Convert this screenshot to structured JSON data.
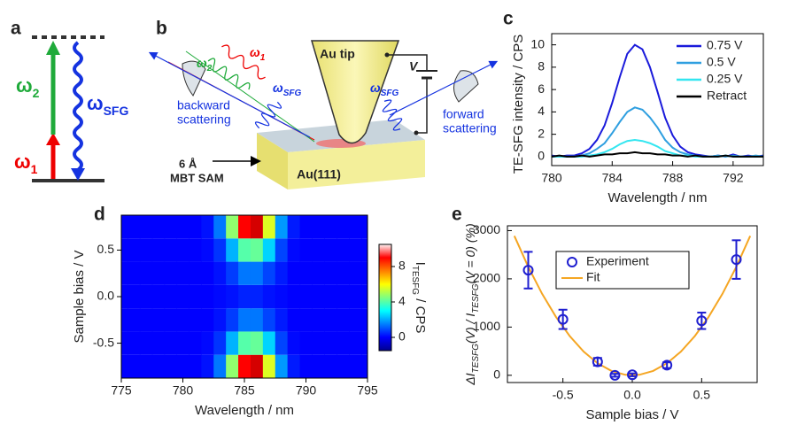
{
  "panel_labels": [
    "a",
    "b",
    "c",
    "d",
    "e"
  ],
  "energy_diagram": {
    "omega_2": [
      "ω",
      "2"
    ],
    "omega_1": [
      "ω",
      "1"
    ],
    "omega_sfg": [
      "ω",
      "SFG"
    ]
  },
  "setup": {
    "tip": "Au tip",
    "substrate": "Au(111)",
    "sam": [
      "6 Å",
      "MBT SAM"
    ],
    "voltage": "V",
    "omega_1": [
      "ω",
      "1"
    ],
    "omega_2": [
      "ω",
      "2"
    ],
    "omega_sfg_back": [
      "ω",
      "SFG"
    ],
    "omega_sfg_fwd": [
      "ω",
      "SFG"
    ],
    "backward": [
      "backward",
      "scattering"
    ],
    "forward": [
      "forward",
      "scattering"
    ]
  },
  "chart_data": [
    {
      "type": "line",
      "xlabel": "Wavelength / nm",
      "ylabel": "TE-SFG intensity / CPS",
      "x": [
        780,
        780.5,
        781,
        781.5,
        782,
        782.5,
        783,
        783.5,
        784,
        784.5,
        785,
        785.5,
        786,
        786.5,
        787,
        787.5,
        788,
        788.5,
        789,
        789.5,
        790,
        790.5,
        791,
        791.5,
        792,
        792.5,
        793,
        793.5,
        794
      ],
      "series": [
        {
          "name": "0.75 V",
          "color": "#1a1adb",
          "values": [
            0.1,
            0,
            0.1,
            0.1,
            0.3,
            0.7,
            1.5,
            2.8,
            4.8,
            7.1,
            9.2,
            10.0,
            9.6,
            8.0,
            5.8,
            3.5,
            1.9,
            0.9,
            0.4,
            0.2,
            0.1,
            0,
            0.1,
            0,
            0.2,
            0,
            0.1,
            0,
            0.1
          ]
        },
        {
          "name": "0.5 V",
          "color": "#2f9fe0",
          "values": [
            0,
            0,
            0,
            0,
            0.1,
            0.3,
            0.7,
            1.2,
            2.1,
            3.1,
            4.0,
            4.4,
            4.2,
            3.5,
            2.6,
            1.5,
            0.8,
            0.4,
            0.2,
            0.1,
            0,
            0,
            0.1,
            0,
            0.1,
            0,
            0,
            0.1,
            0
          ]
        },
        {
          "name": "0.25 V",
          "color": "#33e6f0",
          "values": [
            0,
            0,
            0,
            0,
            0,
            0.1,
            0.2,
            0.4,
            0.7,
            1.1,
            1.4,
            1.5,
            1.4,
            1.2,
            0.9,
            0.5,
            0.3,
            0.1,
            0.1,
            0,
            0,
            0,
            0,
            0.1,
            0,
            0,
            0,
            0,
            0
          ]
        },
        {
          "name": "Retract",
          "color": "#000000",
          "values": [
            0,
            0.1,
            0,
            0,
            0.1,
            0,
            0.1,
            0.2,
            0.2,
            0.3,
            0.3,
            0.4,
            0.3,
            0.3,
            0.2,
            0.2,
            0.1,
            0.1,
            0,
            0.1,
            0,
            0,
            0,
            0.1,
            0,
            0,
            0,
            0,
            0
          ]
        }
      ],
      "xlim": [
        780,
        794
      ],
      "xticks": [
        780,
        784,
        788,
        792
      ],
      "ylim": [
        -0.8,
        11
      ],
      "yticks": [
        0,
        2,
        4,
        6,
        8,
        10
      ]
    },
    {
      "type": "heatmap",
      "xlabel": "Wavelength / nm",
      "ylabel": "Sample bias / V",
      "x": [
        775,
        776,
        777,
        778,
        779,
        780,
        781,
        782,
        783,
        784,
        785,
        786,
        787,
        788,
        789,
        790,
        791,
        792,
        793,
        794,
        795
      ],
      "y": [
        -0.75,
        -0.5,
        -0.25,
        0,
        0.25,
        0.5,
        0.75
      ],
      "z": [
        [
          0,
          0,
          0,
          0,
          0,
          0,
          0,
          0.2,
          1.4,
          4.7,
          9.0,
          9.5,
          5.6,
          1.8,
          0.3,
          0,
          0,
          0,
          0,
          0,
          0
        ],
        [
          0,
          0,
          0,
          0,
          0,
          0,
          0,
          0.1,
          0.6,
          2.1,
          4.0,
          4.2,
          2.5,
          0.8,
          0.1,
          0,
          0,
          0,
          0,
          0,
          0
        ],
        [
          0,
          0,
          0,
          0,
          0,
          0,
          0,
          0,
          0.2,
          0.7,
          1.4,
          1.4,
          0.8,
          0.3,
          0,
          0,
          0,
          0,
          0,
          0,
          0
        ],
        [
          0,
          0,
          0,
          0,
          0,
          0,
          0,
          0,
          0.1,
          0.2,
          0.4,
          0.4,
          0.2,
          0.1,
          0,
          0,
          0,
          0,
          0,
          0,
          0
        ],
        [
          0,
          0,
          0,
          0,
          0,
          0,
          0,
          0,
          0.2,
          0.7,
          1.4,
          1.4,
          0.8,
          0.3,
          0,
          0,
          0,
          0,
          0,
          0,
          0
        ],
        [
          0,
          0,
          0,
          0,
          0,
          0,
          0,
          0.1,
          0.6,
          2.1,
          4.0,
          4.2,
          2.5,
          0.8,
          0.1,
          0,
          0,
          0,
          0,
          0,
          0
        ],
        [
          0,
          0,
          0,
          0,
          0,
          0,
          0,
          0.2,
          1.4,
          4.7,
          9.0,
          9.5,
          5.6,
          1.8,
          0.3,
          0,
          0,
          0,
          0,
          0,
          0
        ]
      ],
      "xlim": [
        775,
        795
      ],
      "xticks": [
        775,
        780,
        785,
        790,
        795
      ],
      "ylim": [
        -0.875,
        0.875
      ],
      "yticks": [
        -0.5,
        {
          "value": 0,
          "label": "0.0"
        },
        0.5
      ],
      "colorbar": {
        "label": [
          "I",
          "TESFG",
          " / CPS"
        ],
        "lim": [
          -1.5,
          10.5
        ],
        "ticks": [
          0,
          4,
          8
        ]
      }
    },
    {
      "type": "scatter",
      "xlabel": "Sample bias / V",
      "ylabel": [
        "ΔI",
        "TESFG",
        "(V) / I",
        "TESFG",
        "(V = 0) (%)"
      ],
      "series": [
        {
          "name": "Experiment",
          "color": "#1f1fd0",
          "x": [
            -0.75,
            -0.5,
            -0.25,
            -0.125,
            0,
            0.25,
            0.5,
            0.75
          ],
          "values": [
            2180,
            1160,
            280,
            0,
            10,
            210,
            1130,
            2400
          ],
          "errors": [
            380,
            200,
            80,
            30,
            30,
            60,
            170,
            400
          ]
        },
        {
          "name": "Fit",
          "color": "#f5a623",
          "x": [
            -0.85,
            -0.75,
            -0.65,
            -0.55,
            -0.45,
            -0.35,
            -0.25,
            -0.15,
            -0.05,
            0.05,
            0.15,
            0.25,
            0.35,
            0.45,
            0.55,
            0.65,
            0.75,
            0.85
          ],
          "values": [
            2890,
            2250,
            1690,
            1210,
            810,
            490,
            250,
            90,
            10,
            10,
            90,
            250,
            490,
            810,
            1210,
            1690,
            2250,
            2890
          ]
        }
      ],
      "xlim": [
        -0.9,
        0.9
      ],
      "xticks": [
        -0.5,
        {
          "value": 0,
          "label": "0.0"
        },
        0.5
      ],
      "ylim": [
        -150,
        3100
      ],
      "yticks": [
        0,
        1000,
        2000,
        3000
      ]
    }
  ]
}
